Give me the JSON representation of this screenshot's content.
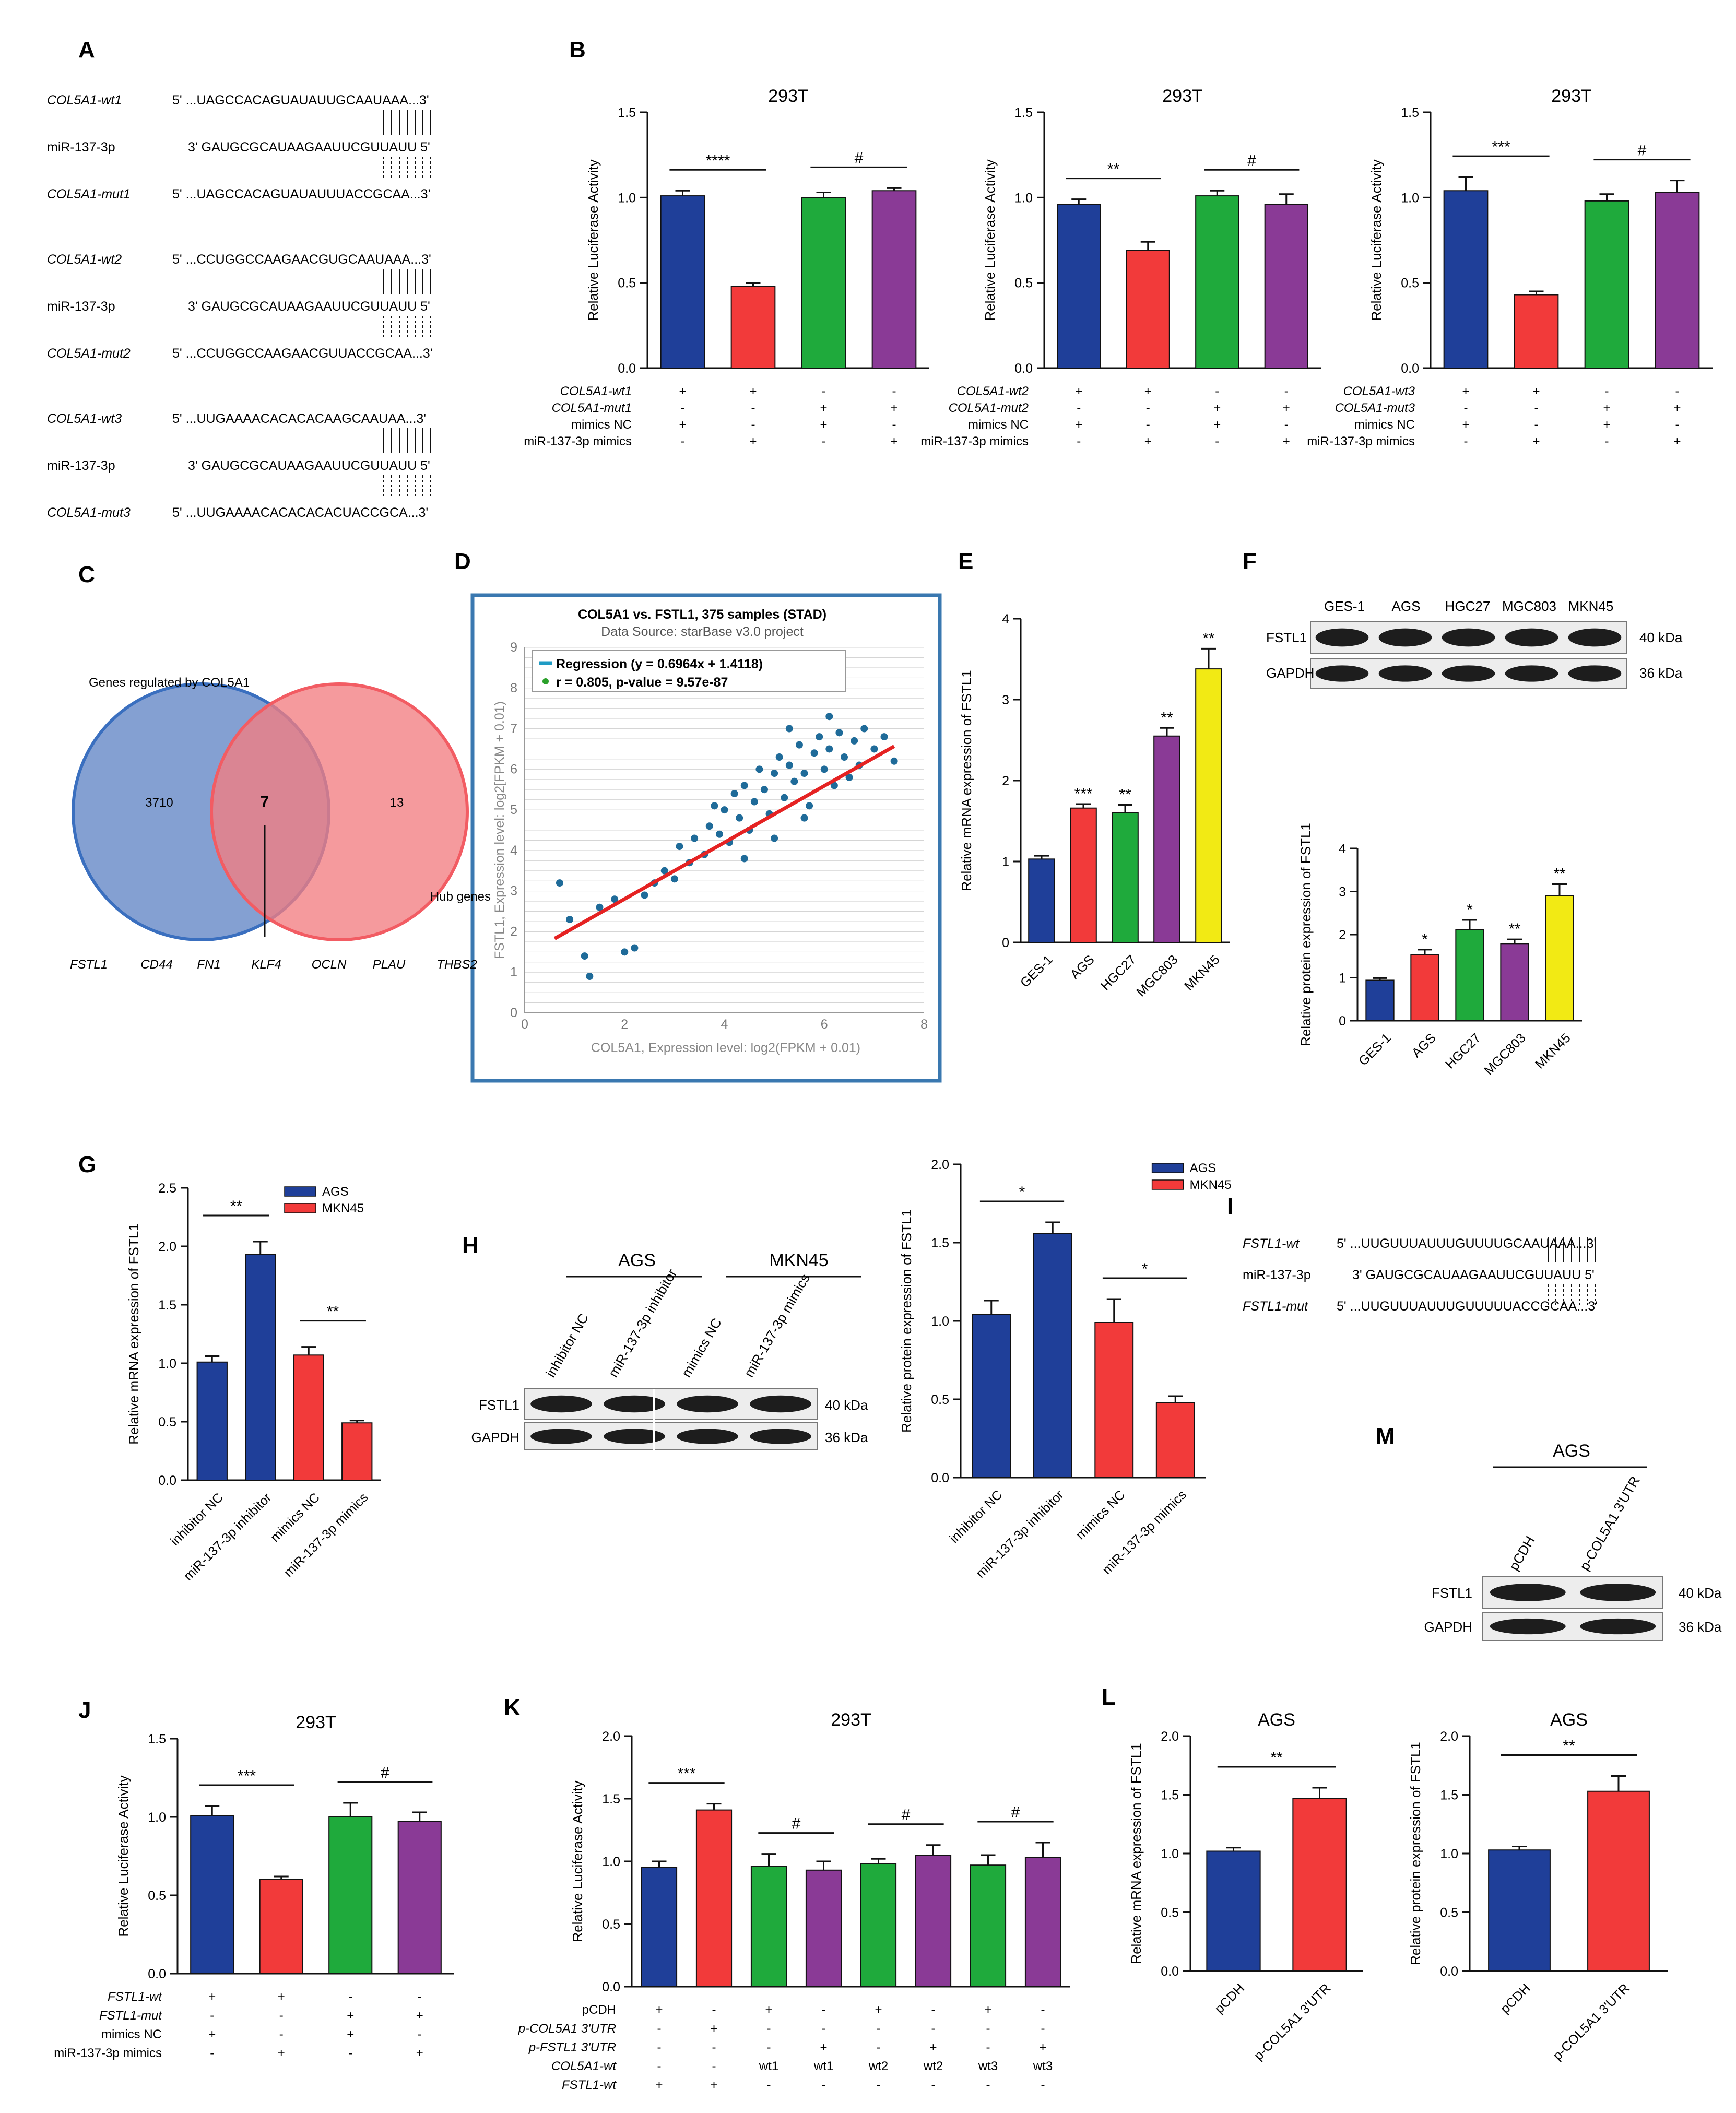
{
  "panels": {
    "A": {
      "letter": "A",
      "rows": [
        {
          "name": "COL5A1-wt1",
          "seq": "5' ...UAGCCACAGUAUAUUGCAAUAAA...3'"
        },
        {
          "name": "miR-137-3p",
          "seq": "3' GAUGCGCAUAAGAAUUCGUUAUU 5'"
        },
        {
          "name": "COL5A1-mut1",
          "seq": "5' ...UAGCCACAGUAUAUUUACCGCAA...3'"
        },
        {
          "name": "COL5A1-wt2",
          "seq": "5' ...CCUGGCCAAGAACGUGCAAUAAA...3'"
        },
        {
          "name": "miR-137-3p",
          "seq": "3' GAUGCGCAUAAGAAUUCGUUAUU 5'"
        },
        {
          "name": "COL5A1-mut2",
          "seq": "5' ...CCUGGCCAAGAACGUUACCGCAA...3'"
        },
        {
          "name": "COL5A1-wt3",
          "seq": "5' ...UUGAAAACACACACAAGCAAUAA...3'"
        },
        {
          "name": "miR-137-3p",
          "seq": "3' GAUGCGCAUAAGAAUUCGUUAUU 5'"
        },
        {
          "name": "COL5A1-mut3",
          "seq": "5' ...UUGAAAACACACACACUACCGCA...3'"
        }
      ]
    },
    "B": {
      "letter": "B"
    },
    "C": {
      "letter": "C",
      "set_left_label": "Genes regulated by COL5A1",
      "set_right_label": "Hub genes",
      "left_only": "3710",
      "overlap": "7",
      "right_only": "13",
      "genes": [
        "FSTL1",
        "CD44",
        "FN1",
        "KLF4",
        "OCLN",
        "PLAU",
        "THBS2"
      ]
    },
    "D": {
      "letter": "D"
    },
    "E": {
      "letter": "E"
    },
    "F": {
      "letter": "F"
    },
    "G": {
      "letter": "G"
    },
    "H": {
      "letter": "H",
      "groups": [
        "AGS",
        "MKN45"
      ],
      "lanes": [
        "inhibitor NC",
        "miR-137-3p inhibitor",
        "mimics NC",
        "miR-137-3p mimics"
      ],
      "proteins": [
        "FSTL1",
        "GAPDH"
      ],
      "sizes": [
        "40 kDa",
        "36 kDa"
      ]
    },
    "I": {
      "letter": "I",
      "rows": [
        {
          "name": "FSTL1-wt",
          "seq": "5' ...UUGUUUAUUUGUUUUGCAAUAAA...3'"
        },
        {
          "name": "miR-137-3p",
          "seq": "3' GAUGCGCAUAAGAAUUCGUUAUU 5'"
        },
        {
          "name": "FSTL1-mut",
          "seq": "5' ...UUGUUUAUUUGUUUUUACCGCAA...3'"
        }
      ]
    },
    "J": {
      "letter": "J"
    },
    "K": {
      "letter": "K"
    },
    "L": {
      "letter": "L"
    },
    "M": {
      "letter": "M",
      "group": "AGS",
      "lanes": [
        "pCDH",
        "p-COL5A1 3'UTR"
      ],
      "proteins": [
        "FSTL1",
        "GAPDH"
      ],
      "sizes": [
        "40 kDa",
        "36 kDa"
      ]
    },
    "F_blot": {
      "lanes": [
        "GES-1",
        "AGS",
        "HGC27",
        "MGC803",
        "MKN45"
      ],
      "proteins": [
        "FSTL1",
        "GAPDH"
      ],
      "sizes": [
        "40 kDa",
        "36 kDa"
      ]
    }
  },
  "colors": {
    "blue": "#1f3f99",
    "red": "#f23a3a",
    "green": "#1faa3c",
    "purple": "#8a3a96",
    "yellow": "#f2ea14",
    "venn_left": "#6f8fca",
    "venn_right": "#f27d82",
    "regression": "#e52222",
    "points": "#1f6b99"
  },
  "chart_data": [
    {
      "id": "B1",
      "type": "bar",
      "title": "293T",
      "ylabel": "Relative Luciferase Activity",
      "ylim": [
        0,
        1.5
      ],
      "yticks": [
        "0.0",
        "0.5",
        "1.0",
        "1.5"
      ],
      "values": [
        1.01,
        0.48,
        1.0,
        1.04
      ],
      "errors": [
        0.03,
        0.02,
        0.03,
        0.015
      ],
      "colors": [
        "blue",
        "red",
        "green",
        "purple"
      ],
      "condition_rows": [
        {
          "label": "COL5A1-wt1",
          "signs": [
            "+",
            "+",
            "-",
            "-"
          ]
        },
        {
          "label": "COL5A1-mut1",
          "signs": [
            "-",
            "-",
            "+",
            "+"
          ]
        },
        {
          "label": "mimics NC",
          "signs": [
            "+",
            "-",
            "+",
            "-"
          ]
        },
        {
          "label": "miR-137-3p mimics",
          "signs": [
            "-",
            "+",
            "-",
            "+"
          ]
        }
      ],
      "sig": [
        {
          "from": 0,
          "to": 1,
          "text": "****"
        },
        {
          "from": 2,
          "to": 3,
          "text": "#"
        }
      ]
    },
    {
      "id": "B2",
      "type": "bar",
      "title": "293T",
      "ylabel": "Relative Luciferase Activity",
      "ylim": [
        0,
        1.5
      ],
      "yticks": [
        "0.0",
        "0.5",
        "1.0",
        "1.5"
      ],
      "values": [
        0.96,
        0.69,
        1.01,
        0.96
      ],
      "errors": [
        0.03,
        0.05,
        0.03,
        0.06
      ],
      "colors": [
        "blue",
        "red",
        "green",
        "purple"
      ],
      "condition_rows": [
        {
          "label": "COL5A1-wt2",
          "signs": [
            "+",
            "+",
            "-",
            "-"
          ]
        },
        {
          "label": "COL5A1-mut2",
          "signs": [
            "-",
            "-",
            "+",
            "+"
          ]
        },
        {
          "label": "mimics NC",
          "signs": [
            "+",
            "-",
            "+",
            "-"
          ]
        },
        {
          "label": "miR-137-3p mimics",
          "signs": [
            "-",
            "+",
            "-",
            "+"
          ]
        }
      ],
      "sig": [
        {
          "from": 0,
          "to": 1,
          "text": "**"
        },
        {
          "from": 2,
          "to": 3,
          "text": "#"
        }
      ]
    },
    {
      "id": "B3",
      "type": "bar",
      "title": "293T",
      "ylabel": "Relative Luciferase Activity",
      "ylim": [
        0,
        1.5
      ],
      "yticks": [
        "0.0",
        "0.5",
        "1.0",
        "1.5"
      ],
      "values": [
        1.04,
        0.43,
        0.98,
        1.03
      ],
      "errors": [
        0.08,
        0.02,
        0.04,
        0.07
      ],
      "colors": [
        "blue",
        "red",
        "green",
        "purple"
      ],
      "condition_rows": [
        {
          "label": "COL5A1-wt3",
          "signs": [
            "+",
            "+",
            "-",
            "-"
          ]
        },
        {
          "label": "COL5A1-mut3",
          "signs": [
            "-",
            "-",
            "+",
            "+"
          ]
        },
        {
          "label": "mimics NC",
          "signs": [
            "+",
            "-",
            "+",
            "-"
          ]
        },
        {
          "label": "miR-137-3p mimics",
          "signs": [
            "-",
            "+",
            "-",
            "+"
          ]
        }
      ],
      "sig": [
        {
          "from": 0,
          "to": 1,
          "text": "***"
        },
        {
          "from": 2,
          "to": 3,
          "text": "#"
        }
      ]
    },
    {
      "id": "D",
      "type": "scatter",
      "title": "COL5A1 vs. FSTL1, 375 samples (STAD)",
      "subtitle": "Data Source: starBase v3.0 project",
      "legend": [
        "Regression (y = 0.6964x + 1.4118)",
        "r = 0.805, p-value = 9.57e-87"
      ],
      "xlabel": "COL5A1, Expression level: log2(FPKM + 0.01)",
      "ylabel": "FSTL1, Expression level: log2[FPKM + 0.01)",
      "xlim": [
        0,
        8
      ],
      "ylim": [
        0,
        9
      ],
      "xticks": [
        "0",
        "2",
        "4",
        "6",
        "8"
      ],
      "yticks": [
        "0",
        "1",
        "2",
        "3",
        "4",
        "5",
        "6",
        "7",
        "8",
        "9"
      ],
      "regression": {
        "slope": 0.6964,
        "intercept": 1.4118,
        "x_range": [
          0.6,
          7.4
        ]
      },
      "n_points": 375,
      "points": [
        [
          0.7,
          3.2
        ],
        [
          0.9,
          2.3
        ],
        [
          1.2,
          1.4
        ],
        [
          1.3,
          0.9
        ],
        [
          1.5,
          2.6
        ],
        [
          1.8,
          2.8
        ],
        [
          2.0,
          1.5
        ],
        [
          2.2,
          1.6
        ],
        [
          2.4,
          2.9
        ],
        [
          2.6,
          3.2
        ],
        [
          2.8,
          3.5
        ],
        [
          3.0,
          3.3
        ],
        [
          3.1,
          4.1
        ],
        [
          3.3,
          3.7
        ],
        [
          3.4,
          4.3
        ],
        [
          3.6,
          3.9
        ],
        [
          3.7,
          4.6
        ],
        [
          3.9,
          4.4
        ],
        [
          4.0,
          5.0
        ],
        [
          4.1,
          4.2
        ],
        [
          4.2,
          5.4
        ],
        [
          4.3,
          4.8
        ],
        [
          4.4,
          5.6
        ],
        [
          4.5,
          4.5
        ],
        [
          4.6,
          5.2
        ],
        [
          4.7,
          6.0
        ],
        [
          4.8,
          5.5
        ],
        [
          4.9,
          4.9
        ],
        [
          5.0,
          5.9
        ],
        [
          5.1,
          6.3
        ],
        [
          5.2,
          5.3
        ],
        [
          5.3,
          6.1
        ],
        [
          5.4,
          5.7
        ],
        [
          5.5,
          6.6
        ],
        [
          5.6,
          5.9
        ],
        [
          5.7,
          5.1
        ],
        [
          5.8,
          6.4
        ],
        [
          5.9,
          6.8
        ],
        [
          6.0,
          6.0
        ],
        [
          6.1,
          6.5
        ],
        [
          6.2,
          5.6
        ],
        [
          6.3,
          6.9
        ],
        [
          6.4,
          6.3
        ],
        [
          6.5,
          5.8
        ],
        [
          6.6,
          6.7
        ],
        [
          6.7,
          6.1
        ],
        [
          6.8,
          7.0
        ],
        [
          7.0,
          6.5
        ],
        [
          7.2,
          6.8
        ],
        [
          7.4,
          6.2
        ],
        [
          5.0,
          4.3
        ],
        [
          5.6,
          4.8
        ],
        [
          3.8,
          5.1
        ],
        [
          4.4,
          3.8
        ],
        [
          6.1,
          7.3
        ],
        [
          5.3,
          7.0
        ]
      ]
    },
    {
      "id": "E",
      "type": "bar",
      "ylabel": "Relative mRNA expression of FSTL1",
      "ylim": [
        0,
        4
      ],
      "yticks": [
        "0",
        "1",
        "2",
        "3",
        "4"
      ],
      "categories": [
        "GES-1",
        "AGS",
        "HGC27",
        "MGC803",
        "MKN45"
      ],
      "values": [
        1.03,
        1.66,
        1.6,
        2.55,
        3.38
      ],
      "errors": [
        0.04,
        0.05,
        0.1,
        0.1,
        0.25
      ],
      "colors": [
        "blue",
        "red",
        "green",
        "purple",
        "yellow"
      ],
      "stars": [
        "",
        "***",
        "**",
        "**",
        "**"
      ]
    },
    {
      "id": "F",
      "type": "bar",
      "ylabel": "Relative protein expression of FSTL1",
      "ylim": [
        0,
        4
      ],
      "yticks": [
        "0",
        "1",
        "2",
        "3",
        "4"
      ],
      "categories": [
        "GES-1",
        "AGS",
        "HGC27",
        "MGC803",
        "MKN45"
      ],
      "values": [
        0.94,
        1.53,
        2.12,
        1.79,
        2.9
      ],
      "errors": [
        0.05,
        0.12,
        0.22,
        0.1,
        0.27
      ],
      "colors": [
        "blue",
        "red",
        "green",
        "purple",
        "yellow"
      ],
      "stars": [
        "",
        "*",
        "*",
        "**",
        "**"
      ]
    },
    {
      "id": "G",
      "type": "bar",
      "ylabel": "Relative mRNA expression of FSTL1",
      "ylim": [
        0,
        2.5
      ],
      "yticks": [
        "0.0",
        "0.5",
        "1.0",
        "1.5",
        "2.0",
        "2.5"
      ],
      "categories": [
        "inhibitor NC",
        "miR-137-3p inhibitor",
        "mimics NC",
        "miR-137-3p mimics"
      ],
      "values": [
        1.01,
        1.93,
        1.07,
        0.49
      ],
      "errors": [
        0.05,
        0.11,
        0.07,
        0.02
      ],
      "colors": [
        "blue",
        "blue",
        "red",
        "red"
      ],
      "legend": [
        {
          "name": "AGS",
          "color": "blue"
        },
        {
          "name": "MKN45",
          "color": "red"
        }
      ],
      "sig": [
        {
          "from": 0,
          "to": 1,
          "text": "**"
        },
        {
          "from": 2,
          "to": 3,
          "text": "**"
        }
      ]
    },
    {
      "id": "H",
      "type": "bar",
      "ylabel": "Relative protein expression of FSTL1",
      "ylim": [
        0,
        2.0
      ],
      "yticks": [
        "0.0",
        "0.5",
        "1.0",
        "1.5",
        "2.0"
      ],
      "categories": [
        "inhibitor NC",
        "miR-137-3p inhibitor",
        "mimics NC",
        "miR-137-3p mimics"
      ],
      "values": [
        1.04,
        1.56,
        0.99,
        0.48
      ],
      "errors": [
        0.09,
        0.07,
        0.15,
        0.04
      ],
      "colors": [
        "blue",
        "blue",
        "red",
        "red"
      ],
      "legend": [
        {
          "name": "AGS",
          "color": "blue"
        },
        {
          "name": "MKN45",
          "color": "red"
        }
      ],
      "sig": [
        {
          "from": 0,
          "to": 1,
          "text": "*"
        },
        {
          "from": 2,
          "to": 3,
          "text": "*"
        }
      ]
    },
    {
      "id": "J",
      "type": "bar",
      "title": "293T",
      "ylabel": "Relative Luciferase Activity",
      "ylim": [
        0,
        1.5
      ],
      "yticks": [
        "0.0",
        "0.5",
        "1.0",
        "1.5"
      ],
      "values": [
        1.01,
        0.6,
        1.0,
        0.97
      ],
      "errors": [
        0.06,
        0.02,
        0.09,
        0.06
      ],
      "colors": [
        "blue",
        "red",
        "green",
        "purple"
      ],
      "condition_rows": [
        {
          "label": "FSTL1-wt",
          "signs": [
            "+",
            "+",
            "-",
            "-"
          ]
        },
        {
          "label": "FSTL1-mut",
          "signs": [
            "-",
            "-",
            "+",
            "+"
          ]
        },
        {
          "label": "mimics NC",
          "signs": [
            "+",
            "-",
            "+",
            "-"
          ]
        },
        {
          "label": "miR-137-3p mimics",
          "signs": [
            "-",
            "+",
            "-",
            "+"
          ]
        }
      ],
      "sig": [
        {
          "from": 0,
          "to": 1,
          "text": "***"
        },
        {
          "from": 2,
          "to": 3,
          "text": "#"
        }
      ]
    },
    {
      "id": "K",
      "type": "bar",
      "title": "293T",
      "ylabel": "Relative Luciferase Activity",
      "ylim": [
        0,
        2.0
      ],
      "yticks": [
        "0.0",
        "0.5",
        "1.0",
        "1.5",
        "2.0"
      ],
      "values": [
        0.95,
        1.41,
        0.96,
        0.93,
        0.98,
        1.05,
        0.97,
        1.03
      ],
      "errors": [
        0.05,
        0.05,
        0.1,
        0.07,
        0.04,
        0.08,
        0.08,
        0.12
      ],
      "colors": [
        "blue",
        "red",
        "green",
        "purple",
        "green",
        "purple",
        "green",
        "purple"
      ],
      "condition_rows": [
        {
          "label": "pCDH",
          "signs": [
            "+",
            "-",
            "+",
            "-",
            "+",
            "-",
            "+",
            "-"
          ]
        },
        {
          "label": "p-COL5A1 3'UTR",
          "signs": [
            "-",
            "+",
            "-",
            "-",
            "-",
            "-",
            "-",
            "-"
          ]
        },
        {
          "label": "p-FSTL1 3'UTR",
          "signs": [
            "-",
            "-",
            "-",
            "+",
            "-",
            "+",
            "-",
            "+"
          ]
        },
        {
          "label": "COL5A1-wt",
          "signs": [
            "-",
            "-",
            "wt1",
            "wt1",
            "wt2",
            "wt2",
            "wt3",
            "wt3"
          ]
        },
        {
          "label": "FSTL1-wt",
          "signs": [
            "+",
            "+",
            "-",
            "-",
            "-",
            "-",
            "-",
            "-"
          ]
        }
      ],
      "sig": [
        {
          "from": 0,
          "to": 1,
          "text": "***"
        },
        {
          "from": 2,
          "to": 3,
          "text": "#"
        },
        {
          "from": 4,
          "to": 5,
          "text": "#"
        },
        {
          "from": 6,
          "to": 7,
          "text": "#"
        }
      ]
    },
    {
      "id": "L",
      "type": "bar",
      "title": "AGS",
      "ylabel": "Relative mRNA expression of FSTL1",
      "ylim": [
        0,
        2.0
      ],
      "yticks": [
        "0.0",
        "0.5",
        "1.0",
        "1.5",
        "2.0"
      ],
      "categories": [
        "pCDH",
        "p-COL5A1 3'UTR"
      ],
      "values": [
        1.02,
        1.47
      ],
      "errors": [
        0.03,
        0.09
      ],
      "colors": [
        "blue",
        "red"
      ],
      "sig": [
        {
          "from": 0,
          "to": 1,
          "text": "**"
        }
      ]
    },
    {
      "id": "M",
      "type": "bar",
      "title": "AGS",
      "ylabel": "Relative protein expression of FSTL1",
      "ylim": [
        0,
        2.0
      ],
      "yticks": [
        "0.0",
        "0.5",
        "1.0",
        "1.5",
        "2.0"
      ],
      "categories": [
        "pCDH",
        "p-COL5A1 3'UTR"
      ],
      "values": [
        1.03,
        1.53
      ],
      "errors": [
        0.03,
        0.13
      ],
      "colors": [
        "blue",
        "red"
      ],
      "sig": [
        {
          "from": 0,
          "to": 1,
          "text": "**"
        }
      ]
    }
  ]
}
